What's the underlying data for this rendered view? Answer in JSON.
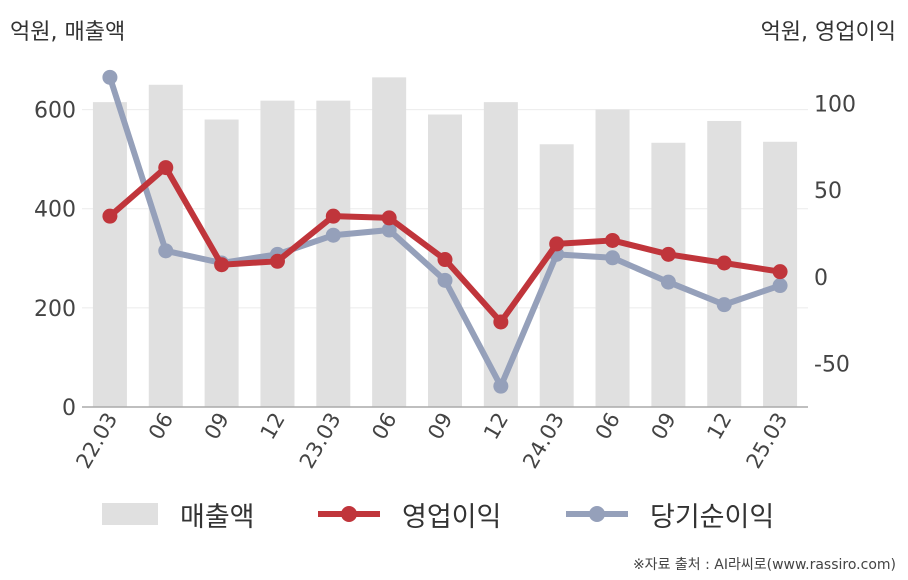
{
  "units": {
    "left": "억원, 매출액",
    "right": "억원, 영업이익"
  },
  "legend": {
    "bar": "매출액",
    "line1": "영업이익",
    "line2": "당기순이익"
  },
  "source": "※자료 출처 : AI라씨로(www.rassiro.com)",
  "colors": {
    "bar": "#e0e0e0",
    "line1": "#c0353b",
    "line2": "#95a0ba"
  },
  "chart_data": {
    "type": "bar",
    "categories": [
      "22.03",
      "06",
      "09",
      "12",
      "23.03",
      "06",
      "09",
      "12",
      "24.03",
      "06",
      "09",
      "12",
      "25.03"
    ],
    "series": [
      {
        "name": "매출액",
        "type": "bar",
        "axis": "left",
        "values": [
          615,
          650,
          580,
          618,
          618,
          665,
          590,
          615,
          530,
          600,
          533,
          577,
          535
        ]
      },
      {
        "name": "영업이익",
        "type": "line",
        "axis": "right",
        "values": [
          35,
          63,
          7,
          9,
          35,
          34,
          10,
          -26,
          19,
          21,
          13,
          8,
          3
        ]
      },
      {
        "name": "당기순이익",
        "type": "line",
        "axis": "right",
        "values": [
          115,
          15,
          8,
          13,
          24,
          27,
          -2,
          -63,
          13,
          11,
          -3,
          -16,
          -5
        ]
      }
    ],
    "left_axis": {
      "ylim": [
        0,
        700
      ],
      "ticks": [
        0,
        200,
        400,
        600
      ]
    },
    "right_axis": {
      "ylim": [
        -75,
        125
      ],
      "ticks": [
        -50,
        0,
        50,
        100
      ]
    },
    "grid": true,
    "legend_position": "bottom"
  }
}
